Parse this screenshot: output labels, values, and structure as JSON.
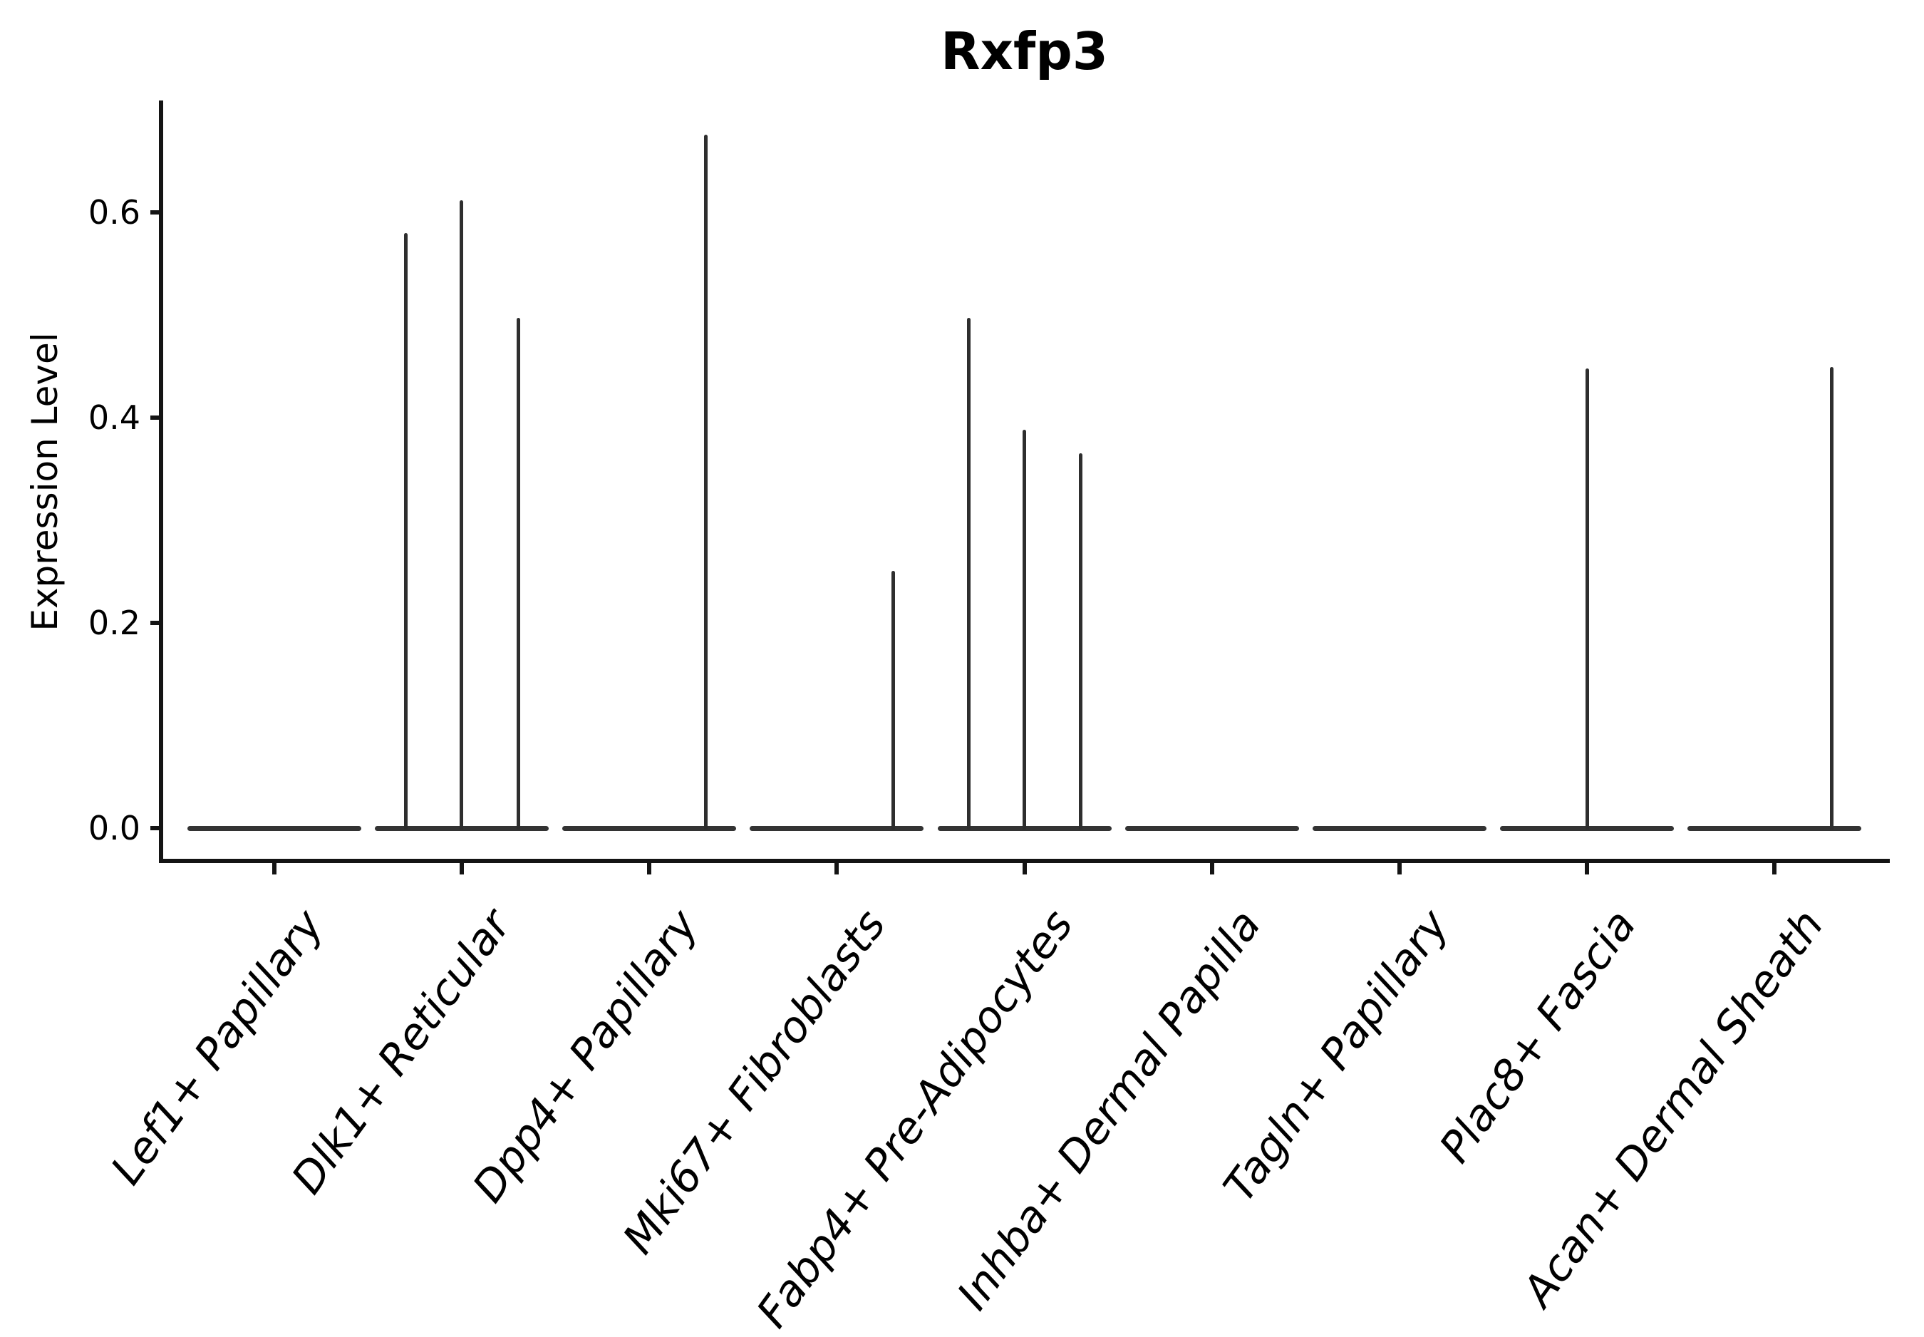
{
  "chart_data": {
    "type": "violin",
    "title": "Rxfp3",
    "ylabel": "Expression Level",
    "xlabel": "",
    "ylim": [
      -0.033,
      0.707
    ],
    "grid": false,
    "legend": "none",
    "yticks": [
      {
        "value": 0.0,
        "label": "0.0"
      },
      {
        "value": 0.2,
        "label": "0.2"
      },
      {
        "value": 0.4,
        "label": "0.4"
      },
      {
        "value": 0.6,
        "label": "0.6"
      }
    ],
    "categories": [
      {
        "label": "Lef1+ Papillary",
        "baseline_value": 0.0,
        "needles": []
      },
      {
        "label": "Dlk1+ Reticular",
        "baseline_value": 0.0,
        "needles": [
          {
            "dx": -79,
            "value": 0.58
          },
          {
            "dx": -1,
            "value": 0.612
          },
          {
            "dx": 79,
            "value": 0.497
          }
        ]
      },
      {
        "label": "Dpp4+ Papillary",
        "baseline_value": 0.0,
        "needles": [
          {
            "dx": 79,
            "value": 0.676
          }
        ]
      },
      {
        "label": "Mki67+ Fibroblasts",
        "baseline_value": 0.0,
        "needles": [
          {
            "dx": 79,
            "value": 0.251
          }
        ]
      },
      {
        "label": "Fabp4+ Pre-Adipocytes",
        "baseline_value": 0.0,
        "needles": [
          {
            "dx": -78,
            "value": 0.497
          },
          {
            "dx": 0,
            "value": 0.388
          },
          {
            "dx": 79,
            "value": 0.365
          }
        ]
      },
      {
        "label": "Inhba+ Dermal Papilla",
        "baseline_value": 0.0,
        "needles": []
      },
      {
        "label": "Tagln+ Papillary",
        "baseline_value": 0.0,
        "needles": []
      },
      {
        "label": "Plac8+ Fascia",
        "baseline_value": 0.0,
        "needles": [
          {
            "dx": 1,
            "value": 0.448
          }
        ]
      },
      {
        "label": "Acan+ Dermal Sheath",
        "baseline_value": 0.0,
        "needles": [
          {
            "dx": 80,
            "value": 0.449
          }
        ]
      }
    ],
    "colors": {
      "background": "#ffffff",
      "axis": "#141414",
      "violin": "#2e2e2e",
      "text": "#000000"
    }
  }
}
